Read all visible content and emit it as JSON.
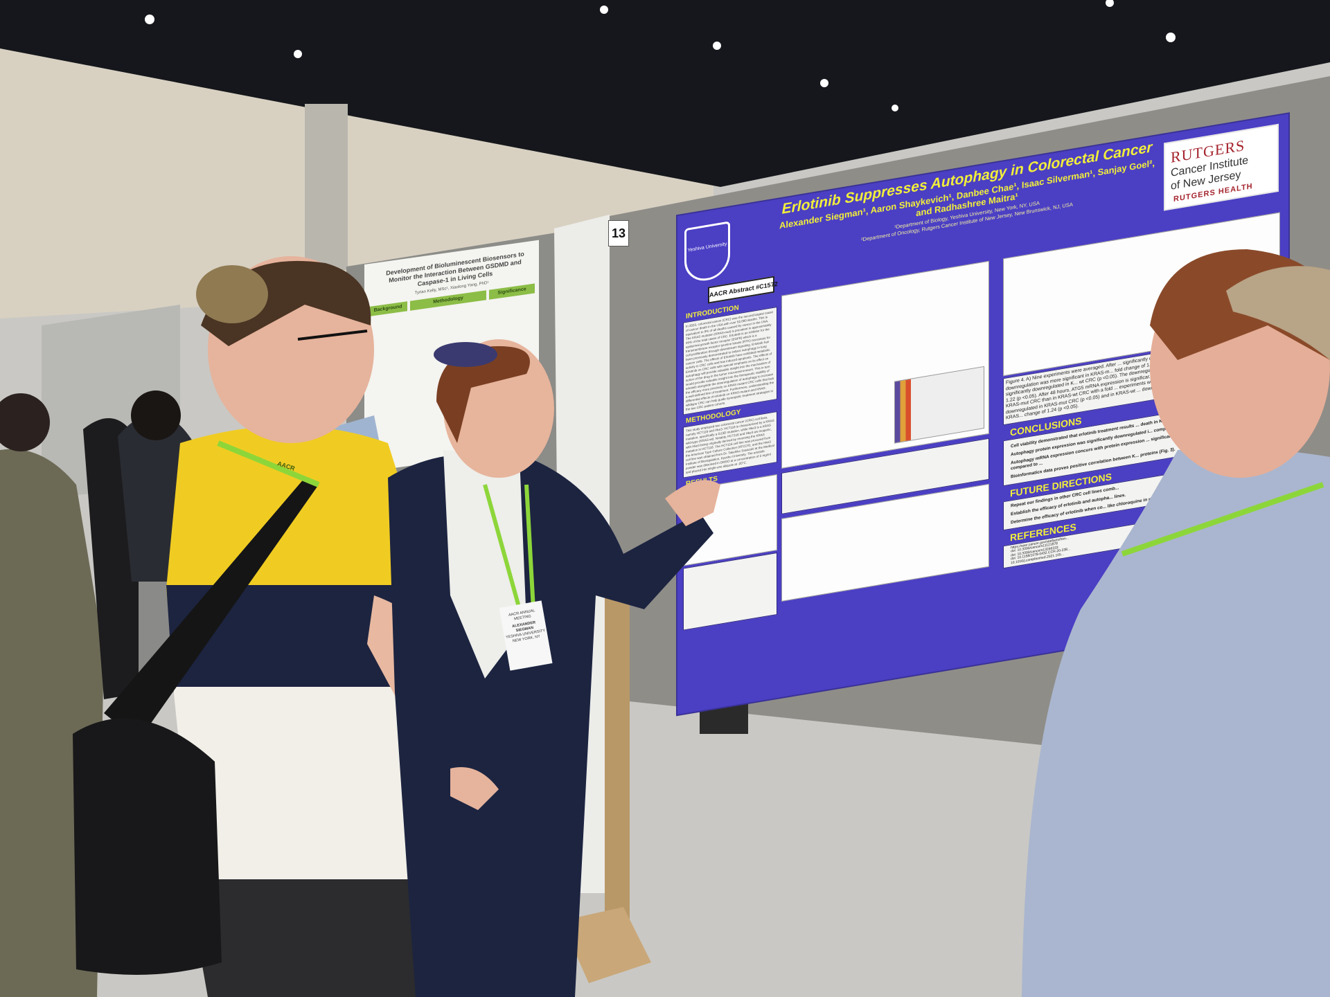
{
  "poster": {
    "title": "Erlotinib Suppresses Autophagy in Colorectal Cancer",
    "authors_line1": "Alexander Siegman¹, Aaron Shaykevich¹, Danbee Chae¹, Isaac Silverman¹, Sanjay Goel²,",
    "authors_line2": "and Radhashree Maitra¹",
    "affiliation1": "¹Department of Biology, Yeshiva University, New York, NY, USA",
    "affiliation2": "²Department of Oncology, Rutgers Cancer Institute of New Jersey, New Brunswick, NJ, USA",
    "left_logo": "Yeshiva University",
    "right_logo": {
      "line1": "RUTGERS",
      "line2": "Cancer Institute",
      "line3": "of New Jersey",
      "line4": "RUTGERS HEALTH"
    },
    "abstract_label": "AACR Abstract #C1572",
    "sections": {
      "introduction": "INTRODUCTION",
      "methodology": "METHODOLOGY",
      "results": "RESULTS",
      "conclusions": "CONCLUSIONS",
      "future_directions": "FUTURE DIRECTIONS",
      "references": "REFERENCES"
    },
    "introduction_text": "In 2023, colorectal cancer (CRC) was the second largest cause of cancer death in the USA with over 52,000 deaths. This is equivalent to 9% of all deaths caused by cancer in the USA. The KRAS mutation (KRAS-mut) is prevalent in approximately 45% of the total cases of CRC. Erlotinib is an inhibitor for the epidermal growth factor receptor (EGFR) which is a transmembrane receptor tyrosine kinase (RTK) necessary for cell proliferation through downstream signaling. Erlotinib has been previously demonstrated to induce autophagy in lung cancer cells. The effects of Erlotinib have exhibited metabolic activity in CRC cells and has induced apoptosis. The effects of Erlotinib on CRC cells with special emphasis on its effect on autophagy will provide valuable insight into the mechanism of action of the drug in the tumor microenvironment. This in turn would provide valuable insight into the therapeutic viability of erlotinib alongside the downregulation of autophagy to increase the efficacy more precisely on KRAS mutant CRC cells that lack a well-defined line of treatment. Furthermore, understanding the differential effects of erlotinib on KRAS-mutant and KRAS-wildtype CRC can help guide synergistic treatment strategies in the two CRC patient cohorts.",
    "methodology_text": "This study employed two colorectal cancer (CRC) cell lines, namely HCT116 and Hke3. HCT116 is characterized by a KRAS mutation, specifically a G13D mutation, while Hke3 is a KRAS wild-type (KRAS-wt). Notably, HCT116 and Hke3 are isogenic, with Hke3 being originally derived by reversing the KRAS mutation in HCT116. The HCT116 cell line was procured from the American Type Culture Collection (ATCC®), and the Hke3 cell line was obtained from Dr. Takehiko Sasazuki at the Medical Institute of Bioregulation, Kyushu University. The erlotinib powder was dissolved in DMSO at a concentration of 2 mg/ml and placed into single-use aliquots at -20°C.",
    "figure4_text": "Figure 4. A) Nine experiments were averaged. After ... significantly downregulated in KRAS-mut CRC (p <0... The downregulation was more significant in KRAS-m... fold change of 1.19 (p <0.05). B) Nine experiments ... mRNA expression is significantly downregulated in K... wt CRC (p <0.05). The downregulation was more ... KRAS-wt CRC with a fold change of 1.22 (p <0.05). After 48 hours, ATG5 mRNA expression is significar... (p <0.05) and in KRAS-wt CRC (p <0.05). The d... KRAS-mut CRC than in KRAS-wt CRC with a fold ... experiments were averaged. After 48 hours, MAP1LC3B ... downregulated in KRAS-mut CRC (p <0.05) and in KRAS-wt ... downregulation was more significant in KRAS-mut CRC than in KRAS... change of 1.24 (p <0.05).",
    "conclusions": [
      "Cell viability demonstrated that erlotinib treatment results ... death in KRAS-wt compared to KRAS-mut (Fig. 1).",
      "Autophagy protein expression was significantly downregulated i... compared to KRAS-wt (Fig. 2).",
      "Autophagy mRNA expression concurs with protein expression ... significantly more downregulated in KRAS-mut compared to ...",
      "Bioinformatics data proves positive correlation between K... proteins (Fig. 3)."
    ],
    "future_directions": [
      "Repeat our findings in other CRC cell lines comb...",
      "Establish the efficacy of erlotinib and autopha... lines.",
      "Determine the efficacy of erlotinib when co... like chloroquine in preclinical animal mod... CRC tumors."
    ],
    "references": [
      "https://seer.cancer.gov/statfacts/htm...",
      "doi: 10.3390/cancers11121878",
      "doi: 10.3390/cancers13246233",
      "doi: 10.1158/1078-0432.CCR-20-238...",
      "10.1016/j.compbiomed.2021.105..."
    ],
    "colors": {
      "background": "#4b3fc4",
      "heading": "#f2ef3a",
      "rutgers_red": "#a5242e"
    }
  },
  "board_number": "13",
  "background_poster": {
    "title": "Development of Bioluminescent Biosensors to Monitor the Interaction Between GSDMD and Caspase-1 in Living Cells",
    "authors": "Tyrian Kelly, MSc¹, Xiaolong Yang, PhD¹",
    "sections": [
      "Background",
      "Methodology",
      "Significance"
    ]
  },
  "badge": {
    "event": "AACR ANNUAL MEETING",
    "name": "ALEXANDER SIEGMAN",
    "org": "YESHIVA UNIVERSITY",
    "location": "NEW YORK, NY"
  },
  "lanyard_text": "AACR"
}
